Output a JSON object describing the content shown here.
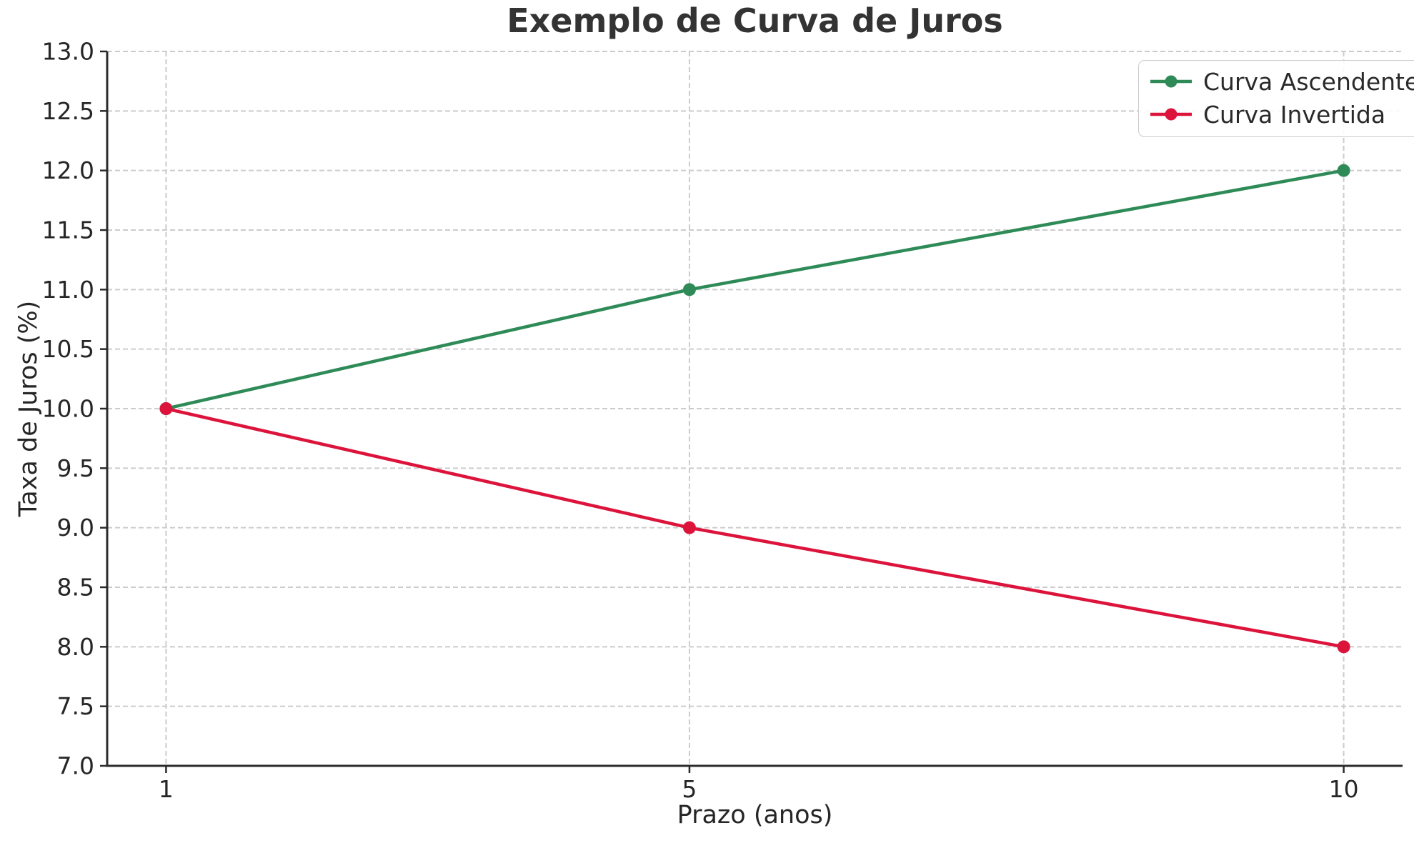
{
  "chart_data": {
    "type": "line",
    "title": "Exemplo de Curva de Juros",
    "xlabel": "Prazo (anos)",
    "ylabel": "Taxa de Juros (%)",
    "x": [
      1,
      5,
      10
    ],
    "series": [
      {
        "name": "Curva Ascendente",
        "color": "#2e8b57",
        "values": [
          10.0,
          11.0,
          12.0
        ]
      },
      {
        "name": "Curva Invertida",
        "color": "#dc143c",
        "values": [
          10.0,
          9.0,
          8.0
        ]
      }
    ],
    "xticks": {
      "positions": [
        1,
        5,
        10
      ],
      "labels": [
        "1",
        "5",
        "10"
      ]
    },
    "yticks": {
      "positions": [
        7.0,
        7.5,
        8.0,
        8.5,
        9.0,
        9.5,
        10.0,
        10.5,
        11.0,
        11.5,
        12.0,
        12.5,
        13.0
      ],
      "labels": [
        "7.0",
        "7.5",
        "8.0",
        "8.5",
        "9.0",
        "9.5",
        "10.0",
        "10.5",
        "11.0",
        "11.5",
        "12.0",
        "12.5",
        "13.0"
      ]
    },
    "xlim": [
      0.55,
      10.45
    ],
    "ylim": [
      7.0,
      13.0
    ],
    "grid": true,
    "legend_position": "upper right",
    "marker": "circle",
    "colors": {
      "grid": "#cccccc",
      "spine": "#2b2b2b",
      "tick_text": "#262626",
      "title_text": "#333333"
    }
  }
}
